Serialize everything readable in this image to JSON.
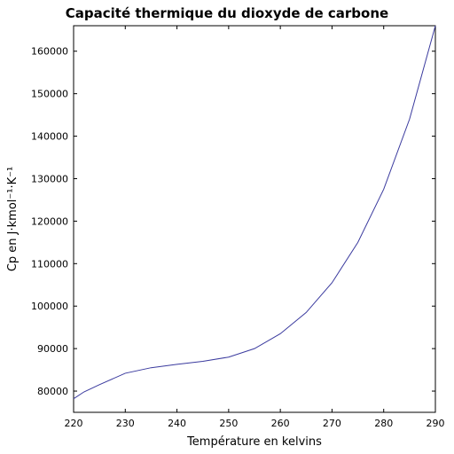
{
  "chart_data": {
    "type": "line",
    "title": "Capacité thermique du dioxyde de carbone",
    "xlabel": "Température en kelvins",
    "ylabel": "Cp en J·kmol⁻¹·K⁻¹",
    "x": [
      220,
      222,
      225,
      230,
      235,
      240,
      245,
      250,
      255,
      260,
      265,
      270,
      275,
      280,
      285,
      290
    ],
    "series": [
      {
        "name": "Cp",
        "color": "#3a3a9e",
        "values": [
          78200,
          79800,
          81500,
          84200,
          85500,
          86300,
          87000,
          88000,
          90000,
          93500,
          98500,
          105500,
          115000,
          127500,
          144000,
          166000
        ]
      }
    ],
    "xlim": [
      220,
      290
    ],
    "xticks": [
      220,
      230,
      240,
      250,
      260,
      270,
      280,
      290
    ],
    "ylim": [
      75000,
      166000
    ],
    "yticks": [
      80000,
      90000,
      100000,
      110000,
      120000,
      130000,
      140000,
      150000,
      160000
    ],
    "grid": false
  }
}
